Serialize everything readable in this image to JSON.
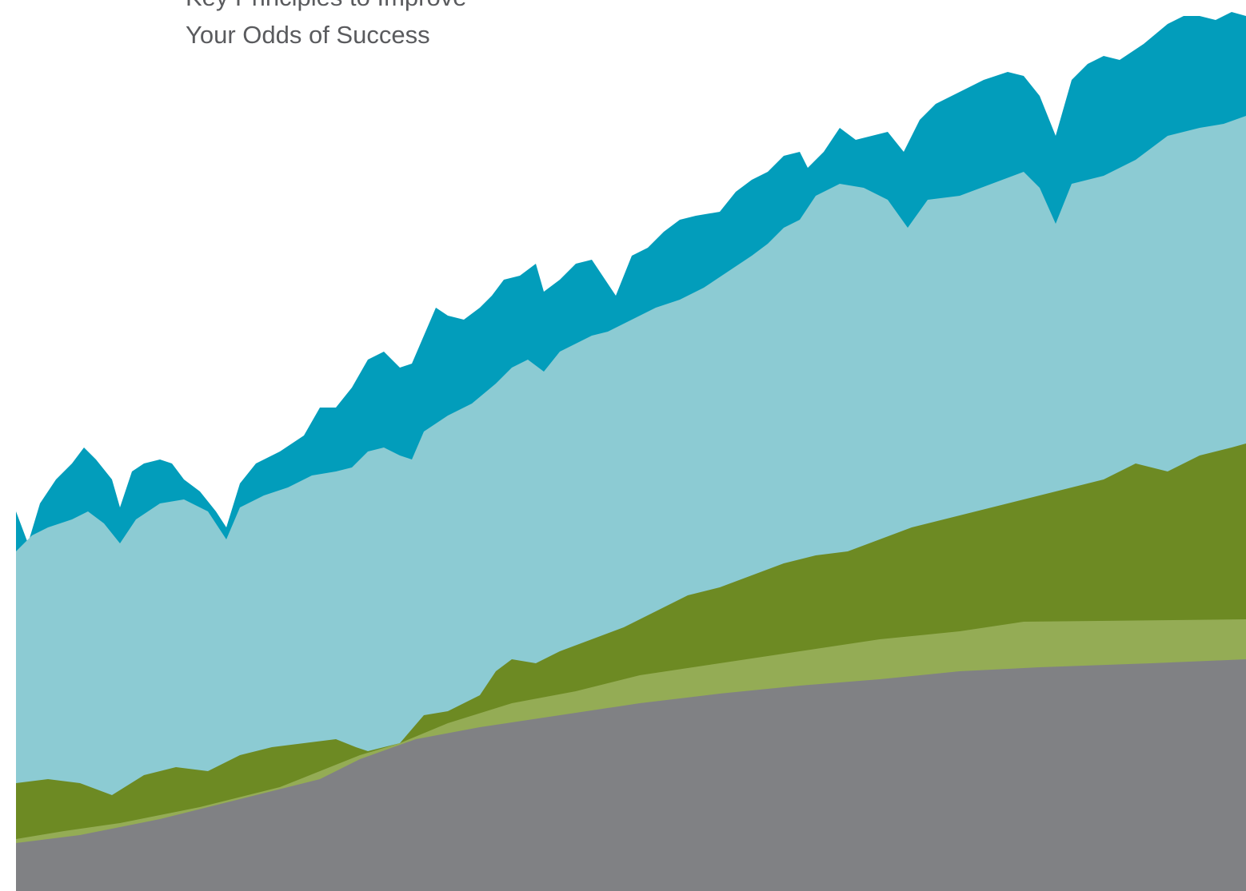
{
  "header": {
    "title_lines": [
      "Key Principles to Improve",
      "Your Odds of Success"
    ]
  }
}
